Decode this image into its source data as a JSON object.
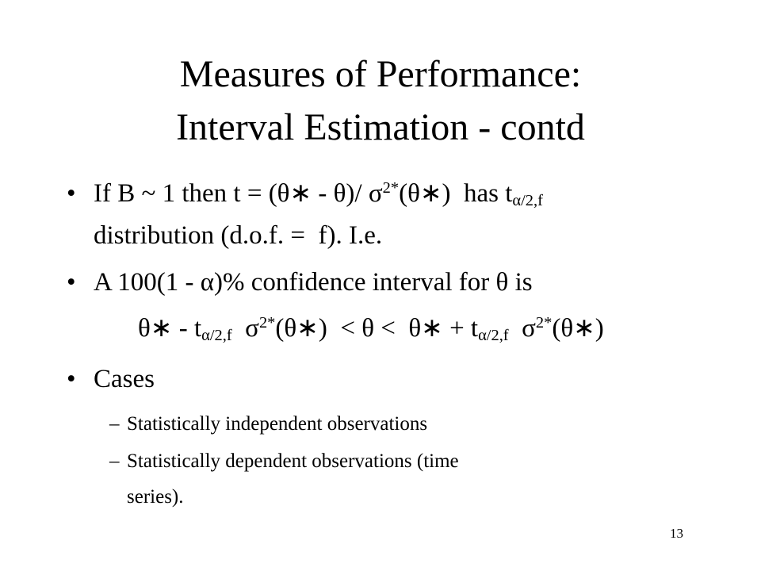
{
  "title": [
    "Measures of Performance:",
    "Interval Estimation - contd"
  ],
  "bullets": [
    {
      "lines": [
        [
          "If B ~ 1 then t = (θ∗ - θ)/ σ",
          "2*",
          "(θ∗)  has t",
          "α/2,f"
        ],
        [
          "distribution (d.o.f. =  f). I.e."
        ]
      ]
    },
    {
      "lines": [
        [
          "A 100(1 - α)% confidence interval for θ is"
        ]
      ],
      "formula": [
        "θ∗ - t",
        "α/2,f",
        "  σ",
        "2*",
        "(θ∗)  < θ <  θ∗ + t",
        "α/2,f",
        "  σ",
        "2*",
        "(θ∗)"
      ]
    },
    {
      "lines": [
        [
          "Cases"
        ]
      ],
      "subitems": [
        [
          "Statistically independent observations"
        ],
        [
          "Statistically dependent observations (time",
          "series)."
        ]
      ]
    }
  ],
  "page_number": "13"
}
